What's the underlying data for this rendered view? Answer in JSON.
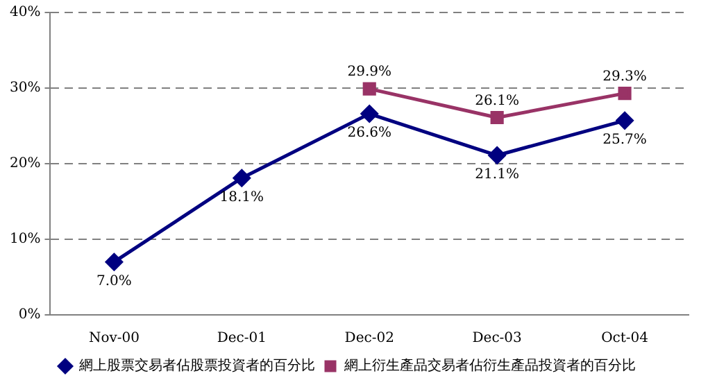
{
  "chart_data": {
    "type": "line",
    "categories": [
      "Nov-00",
      "Dec-01",
      "Dec-02",
      "Dec-03",
      "Oct-04"
    ],
    "series": [
      {
        "name": "網上股票交易者佔股票投資者的百分比",
        "color": "#000080",
        "marker": "diamond",
        "values": [
          7.0,
          18.1,
          26.6,
          21.1,
          25.7
        ],
        "value_labels": [
          "7.0%",
          "18.1%",
          "26.6%",
          "21.1%",
          "25.7%"
        ]
      },
      {
        "name": "網上衍生產品交易者佔衍生產品投資者的百分比",
        "color": "#993366",
        "marker": "square",
        "values": [
          null,
          null,
          29.9,
          26.1,
          29.3
        ],
        "value_labels": [
          null,
          null,
          "29.9%",
          "26.1%",
          "29.3%"
        ]
      }
    ],
    "ylim": [
      0,
      40
    ],
    "yticks": [
      {
        "value": 0,
        "label": "0%"
      },
      {
        "value": 10,
        "label": "10%"
      },
      {
        "value": 20,
        "label": "20%"
      },
      {
        "value": 30,
        "label": "30%"
      },
      {
        "value": 40,
        "label": "40%"
      }
    ],
    "grid": "y",
    "line_style": "solid",
    "legend": "bottom"
  }
}
